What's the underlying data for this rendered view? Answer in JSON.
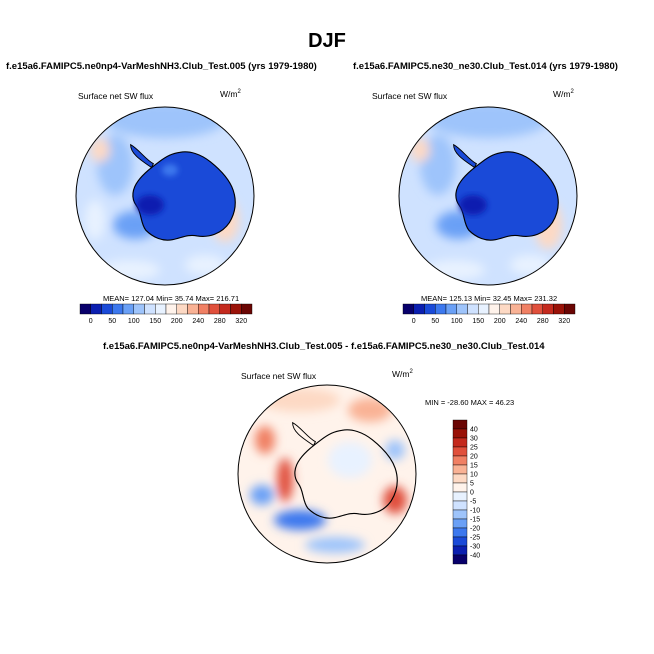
{
  "figure": {
    "title": "DJF"
  },
  "panels": [
    {
      "case": "f.e15a6.FAMIPC5.ne0np4-VarMeshNH3.Club_Test.005 (yrs 1979-1980)",
      "variable": "Surface net SW flux",
      "units": "W/m",
      "units_exp": "2",
      "stats_text": "MEAN= 127.04  Min=  35.74  Max= 216.71"
    },
    {
      "case": "f.e15a6.FAMIPC5.ne30_ne30.Club_Test.014 (yrs 1979-1980)",
      "variable": "Surface net SW flux",
      "units": "W/m",
      "units_exp": "2",
      "stats_text": "MEAN= 125.13  Min=  32.45  Max= 231.32"
    },
    {
      "case": "f.e15a6.FAMIPC5.ne0np4-VarMeshNH3.Club_Test.005 - f.e15a6.FAMIPC5.ne30_ne30.Club_Test.014",
      "variable": "Surface net SW flux",
      "units": "W/m",
      "units_exp": "2",
      "stats_text": "MIN = -28.60 MAX =  46.23"
    }
  ],
  "chart_data": [
    {
      "type": "heatmap",
      "projection": "south-polar-stereographic",
      "title": "f.e15a6.FAMIPC5.ne0np4-VarMeshNH3.Club_Test.005 (yrs 1979-1980)",
      "variable": "Surface net SW flux",
      "units": "W/m2",
      "stats": {
        "mean": 127.04,
        "min": 35.74,
        "max": 216.71
      },
      "colorbar": {
        "orientation": "horizontal",
        "tick_labels": [
          "0",
          "50",
          "100",
          "150",
          "200",
          "240",
          "280",
          "320"
        ],
        "levels": [
          0,
          25,
          50,
          75,
          100,
          125,
          150,
          175,
          200,
          220,
          240,
          260,
          280,
          300,
          320
        ],
        "colors": [
          "#08006b",
          "#0b1fb0",
          "#1a4ad8",
          "#3c78ee",
          "#6aa0f6",
          "#9ec4fb",
          "#cfe2ff",
          "#e8f2ff",
          "#fff3eb",
          "#fdd9c4",
          "#f9b295",
          "#f08064",
          "#e0503c",
          "#c42a1e",
          "#9a1208",
          "#6a0503"
        ]
      }
    },
    {
      "type": "heatmap",
      "projection": "south-polar-stereographic",
      "title": "f.e15a6.FAMIPC5.ne30_ne30.Club_Test.014 (yrs 1979-1980)",
      "variable": "Surface net SW flux",
      "units": "W/m2",
      "stats": {
        "mean": 125.13,
        "min": 32.45,
        "max": 231.32
      },
      "colorbar": {
        "orientation": "horizontal",
        "tick_labels": [
          "0",
          "50",
          "100",
          "150",
          "200",
          "240",
          "280",
          "320"
        ],
        "levels": [
          0,
          25,
          50,
          75,
          100,
          125,
          150,
          175,
          200,
          220,
          240,
          260,
          280,
          300,
          320
        ],
        "colors": [
          "#08006b",
          "#0b1fb0",
          "#1a4ad8",
          "#3c78ee",
          "#6aa0f6",
          "#9ec4fb",
          "#cfe2ff",
          "#e8f2ff",
          "#fff3eb",
          "#fdd9c4",
          "#f9b295",
          "#f08064",
          "#e0503c",
          "#c42a1e",
          "#9a1208",
          "#6a0503"
        ]
      }
    },
    {
      "type": "heatmap",
      "projection": "south-polar-stereographic",
      "title": "f.e15a6.FAMIPC5.ne0np4-VarMeshNH3.Club_Test.005 - f.e15a6.FAMIPC5.ne30_ne30.Club_Test.014",
      "variable": "Surface net SW flux",
      "units": "W/m2",
      "stats": {
        "min": -28.6,
        "max": 46.23
      },
      "colorbar": {
        "orientation": "vertical",
        "tick_labels": [
          "40",
          "30",
          "25",
          "20",
          "15",
          "10",
          "5",
          "0",
          "-5",
          "-10",
          "-15",
          "-20",
          "-25",
          "-30",
          "-40"
        ],
        "levels": [
          -40,
          -30,
          -25,
          -20,
          -15,
          -10,
          -5,
          0,
          5,
          10,
          15,
          20,
          25,
          30,
          40
        ],
        "colors": [
          "#08006b",
          "#0b1fb0",
          "#1a4ad8",
          "#3c78ee",
          "#6aa0f6",
          "#9ec4fb",
          "#cfe2ff",
          "#e8f2ff",
          "#fff3eb",
          "#fdd9c4",
          "#f9b295",
          "#f08064",
          "#e0503c",
          "#c42a1e",
          "#9a1208",
          "#6a0503"
        ]
      }
    }
  ]
}
